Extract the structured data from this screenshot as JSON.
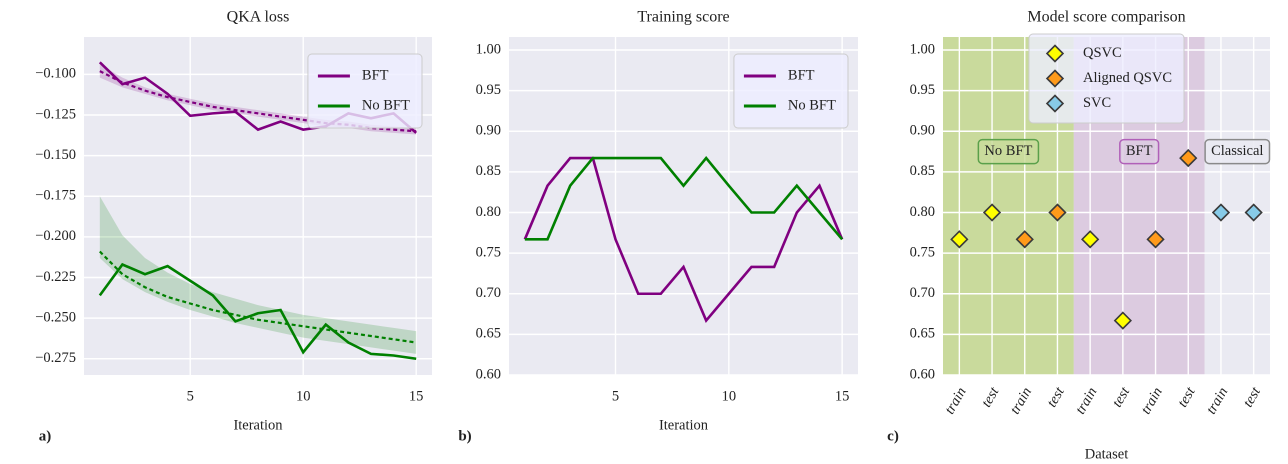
{
  "chart_data": [
    {
      "type": "line",
      "title": "QKA loss",
      "x_label": "Iteration",
      "panel_label": "a)",
      "x": [
        1,
        2,
        3,
        4,
        5,
        6,
        7,
        8,
        9,
        10,
        11,
        12,
        13,
        14,
        15
      ],
      "xlim": [
        0.3,
        15.7
      ],
      "xticks": [
        5,
        10,
        15
      ],
      "ylim": [
        -0.285,
        -0.077
      ],
      "yticks": [
        {
          "value": -0.1,
          "label": "−0.100"
        },
        {
          "value": -0.125,
          "label": "−0.125"
        },
        {
          "value": -0.15,
          "label": "−0.150"
        },
        {
          "value": -0.175,
          "label": "−0.175"
        },
        {
          "value": -0.2,
          "label": "−0.200"
        },
        {
          "value": -0.225,
          "label": "−0.225"
        },
        {
          "value": -0.25,
          "label": "−0.250"
        },
        {
          "value": -0.275,
          "label": "−0.275"
        }
      ],
      "grid": true,
      "background": "#eaeaf2",
      "legend": "upper right",
      "series": [
        {
          "name": "BFT",
          "color": "#800080",
          "values": [
            -0.0926,
            -0.106,
            -0.102,
            -0.112,
            -0.1255,
            -0.124,
            -0.123,
            -0.134,
            -0.129,
            -0.134,
            -0.132,
            -0.124,
            -0.127,
            -0.124,
            -0.136
          ],
          "fit": [
            -0.098,
            -0.105,
            -0.11,
            -0.114,
            -0.117,
            -0.12,
            -0.122,
            -0.124,
            -0.126,
            -0.128,
            -0.13,
            -0.131,
            -0.133,
            -0.134,
            -0.135
          ],
          "band_high": [
            -0.094,
            -0.102,
            -0.108,
            -0.112,
            -0.115,
            -0.118,
            -0.12,
            -0.122,
            -0.124,
            -0.126,
            -0.128,
            -0.129,
            -0.131,
            -0.132,
            -0.133
          ],
          "band_low": [
            -0.102,
            -0.108,
            -0.112,
            -0.116,
            -0.119,
            -0.122,
            -0.124,
            -0.126,
            -0.128,
            -0.13,
            -0.132,
            -0.133,
            -0.135,
            -0.136,
            -0.137
          ]
        },
        {
          "name": "No BFT",
          "color": "#008000",
          "values": [
            -0.236,
            -0.217,
            -0.223,
            -0.218,
            -0.227,
            -0.236,
            -0.252,
            -0.247,
            -0.245,
            -0.271,
            -0.254,
            -0.265,
            -0.272,
            -0.273,
            -0.275
          ],
          "fit": [
            -0.209,
            -0.223,
            -0.231,
            -0.237,
            -0.241,
            -0.245,
            -0.248,
            -0.251,
            -0.253,
            -0.255,
            -0.257,
            -0.259,
            -0.261,
            -0.263,
            -0.265
          ],
          "band_high": [
            -0.175,
            -0.199,
            -0.213,
            -0.222,
            -0.229,
            -0.234,
            -0.238,
            -0.242,
            -0.245,
            -0.248,
            -0.25,
            -0.252,
            -0.254,
            -0.256,
            -0.258
          ],
          "band_low": [
            -0.213,
            -0.226,
            -0.234,
            -0.24,
            -0.245,
            -0.249,
            -0.253,
            -0.256,
            -0.259,
            -0.262,
            -0.264,
            -0.266,
            -0.268,
            -0.27,
            -0.272
          ]
        }
      ]
    },
    {
      "type": "line",
      "title": "Training score",
      "x_label": "Iteration",
      "panel_label": "b)",
      "x": [
        1,
        2,
        3,
        4,
        5,
        6,
        7,
        8,
        9,
        10,
        11,
        12,
        13,
        14,
        15
      ],
      "xlim": [
        0.3,
        15.7
      ],
      "xticks": [
        5,
        10,
        15
      ],
      "ylim": [
        0.6,
        1.016
      ],
      "yticks": [
        {
          "value": 0.6,
          "label": "0.60"
        },
        0.65,
        {
          "value": 0.7,
          "label": "0.70"
        },
        0.75,
        {
          "value": 0.8,
          "label": "0.80"
        },
        0.85,
        {
          "value": 0.9,
          "label": "0.90"
        },
        0.95,
        {
          "value": 1,
          "label": "1.00"
        }
      ],
      "grid": true,
      "background": "#eaeaf2",
      "legend": "upper right",
      "series": [
        {
          "name": "BFT",
          "color": "#800080",
          "values": [
            0.767,
            0.833,
            0.867,
            0.867,
            0.767,
            0.7,
            0.7,
            0.733,
            0.667,
            0.7,
            0.733,
            0.733,
            0.8,
            0.833,
            0.767
          ]
        },
        {
          "name": "No BFT",
          "color": "#008000",
          "values": [
            0.767,
            0.767,
            0.833,
            0.867,
            0.867,
            0.867,
            0.867,
            0.833,
            0.867,
            0.833,
            0.8,
            0.8,
            0.833,
            0.8,
            0.767
          ]
        }
      ]
    },
    {
      "type": "scatter",
      "title": "Model score comparison",
      "x_label": "Dataset",
      "panel_label": "c)",
      "categories": [
        "train",
        "test",
        "train",
        "test",
        "train",
        "test",
        "train",
        "test",
        "train",
        "test"
      ],
      "ylim": [
        0.6,
        1.016
      ],
      "yticks": [
        {
          "value": 0.6,
          "label": "0.60"
        },
        0.65,
        {
          "value": 0.7,
          "label": "0.70"
        },
        0.75,
        {
          "value": 0.8,
          "label": "0.80"
        },
        0.85,
        {
          "value": 0.9,
          "label": "0.90"
        },
        0.95,
        {
          "value": 1,
          "label": "1.00"
        }
      ],
      "grid": true,
      "background": "#eaeaf2",
      "legend": "upper center",
      "regions": [
        {
          "label": "No BFT",
          "span": [
            0,
            3
          ],
          "color": "#c9da9c",
          "edge": "#5aa04a",
          "label_y": 0.875
        },
        {
          "label": "BFT",
          "span": [
            4,
            7
          ],
          "color": "#dccbe0",
          "edge": "#b060b8",
          "label_y": 0.875
        },
        {
          "label": "Classical",
          "span": [
            8,
            9
          ],
          "color": "#eaeaf2",
          "edge": "#8a8a8a",
          "label_y": 0.875
        }
      ],
      "series": [
        {
          "name": "QSVC",
          "color": "#ffff00",
          "values": [
            0.767,
            0.8,
            null,
            null,
            0.767,
            0.667,
            null,
            null,
            null,
            null
          ]
        },
        {
          "name": "Aligned QSVC",
          "color": "#ff9a1a",
          "values": [
            null,
            null,
            0.767,
            0.8,
            null,
            null,
            0.767,
            0.867,
            null,
            null
          ]
        },
        {
          "name": "SVC",
          "color": "#87cbe8",
          "values": [
            null,
            null,
            null,
            null,
            null,
            null,
            null,
            null,
            0.8,
            0.8
          ]
        }
      ]
    }
  ]
}
